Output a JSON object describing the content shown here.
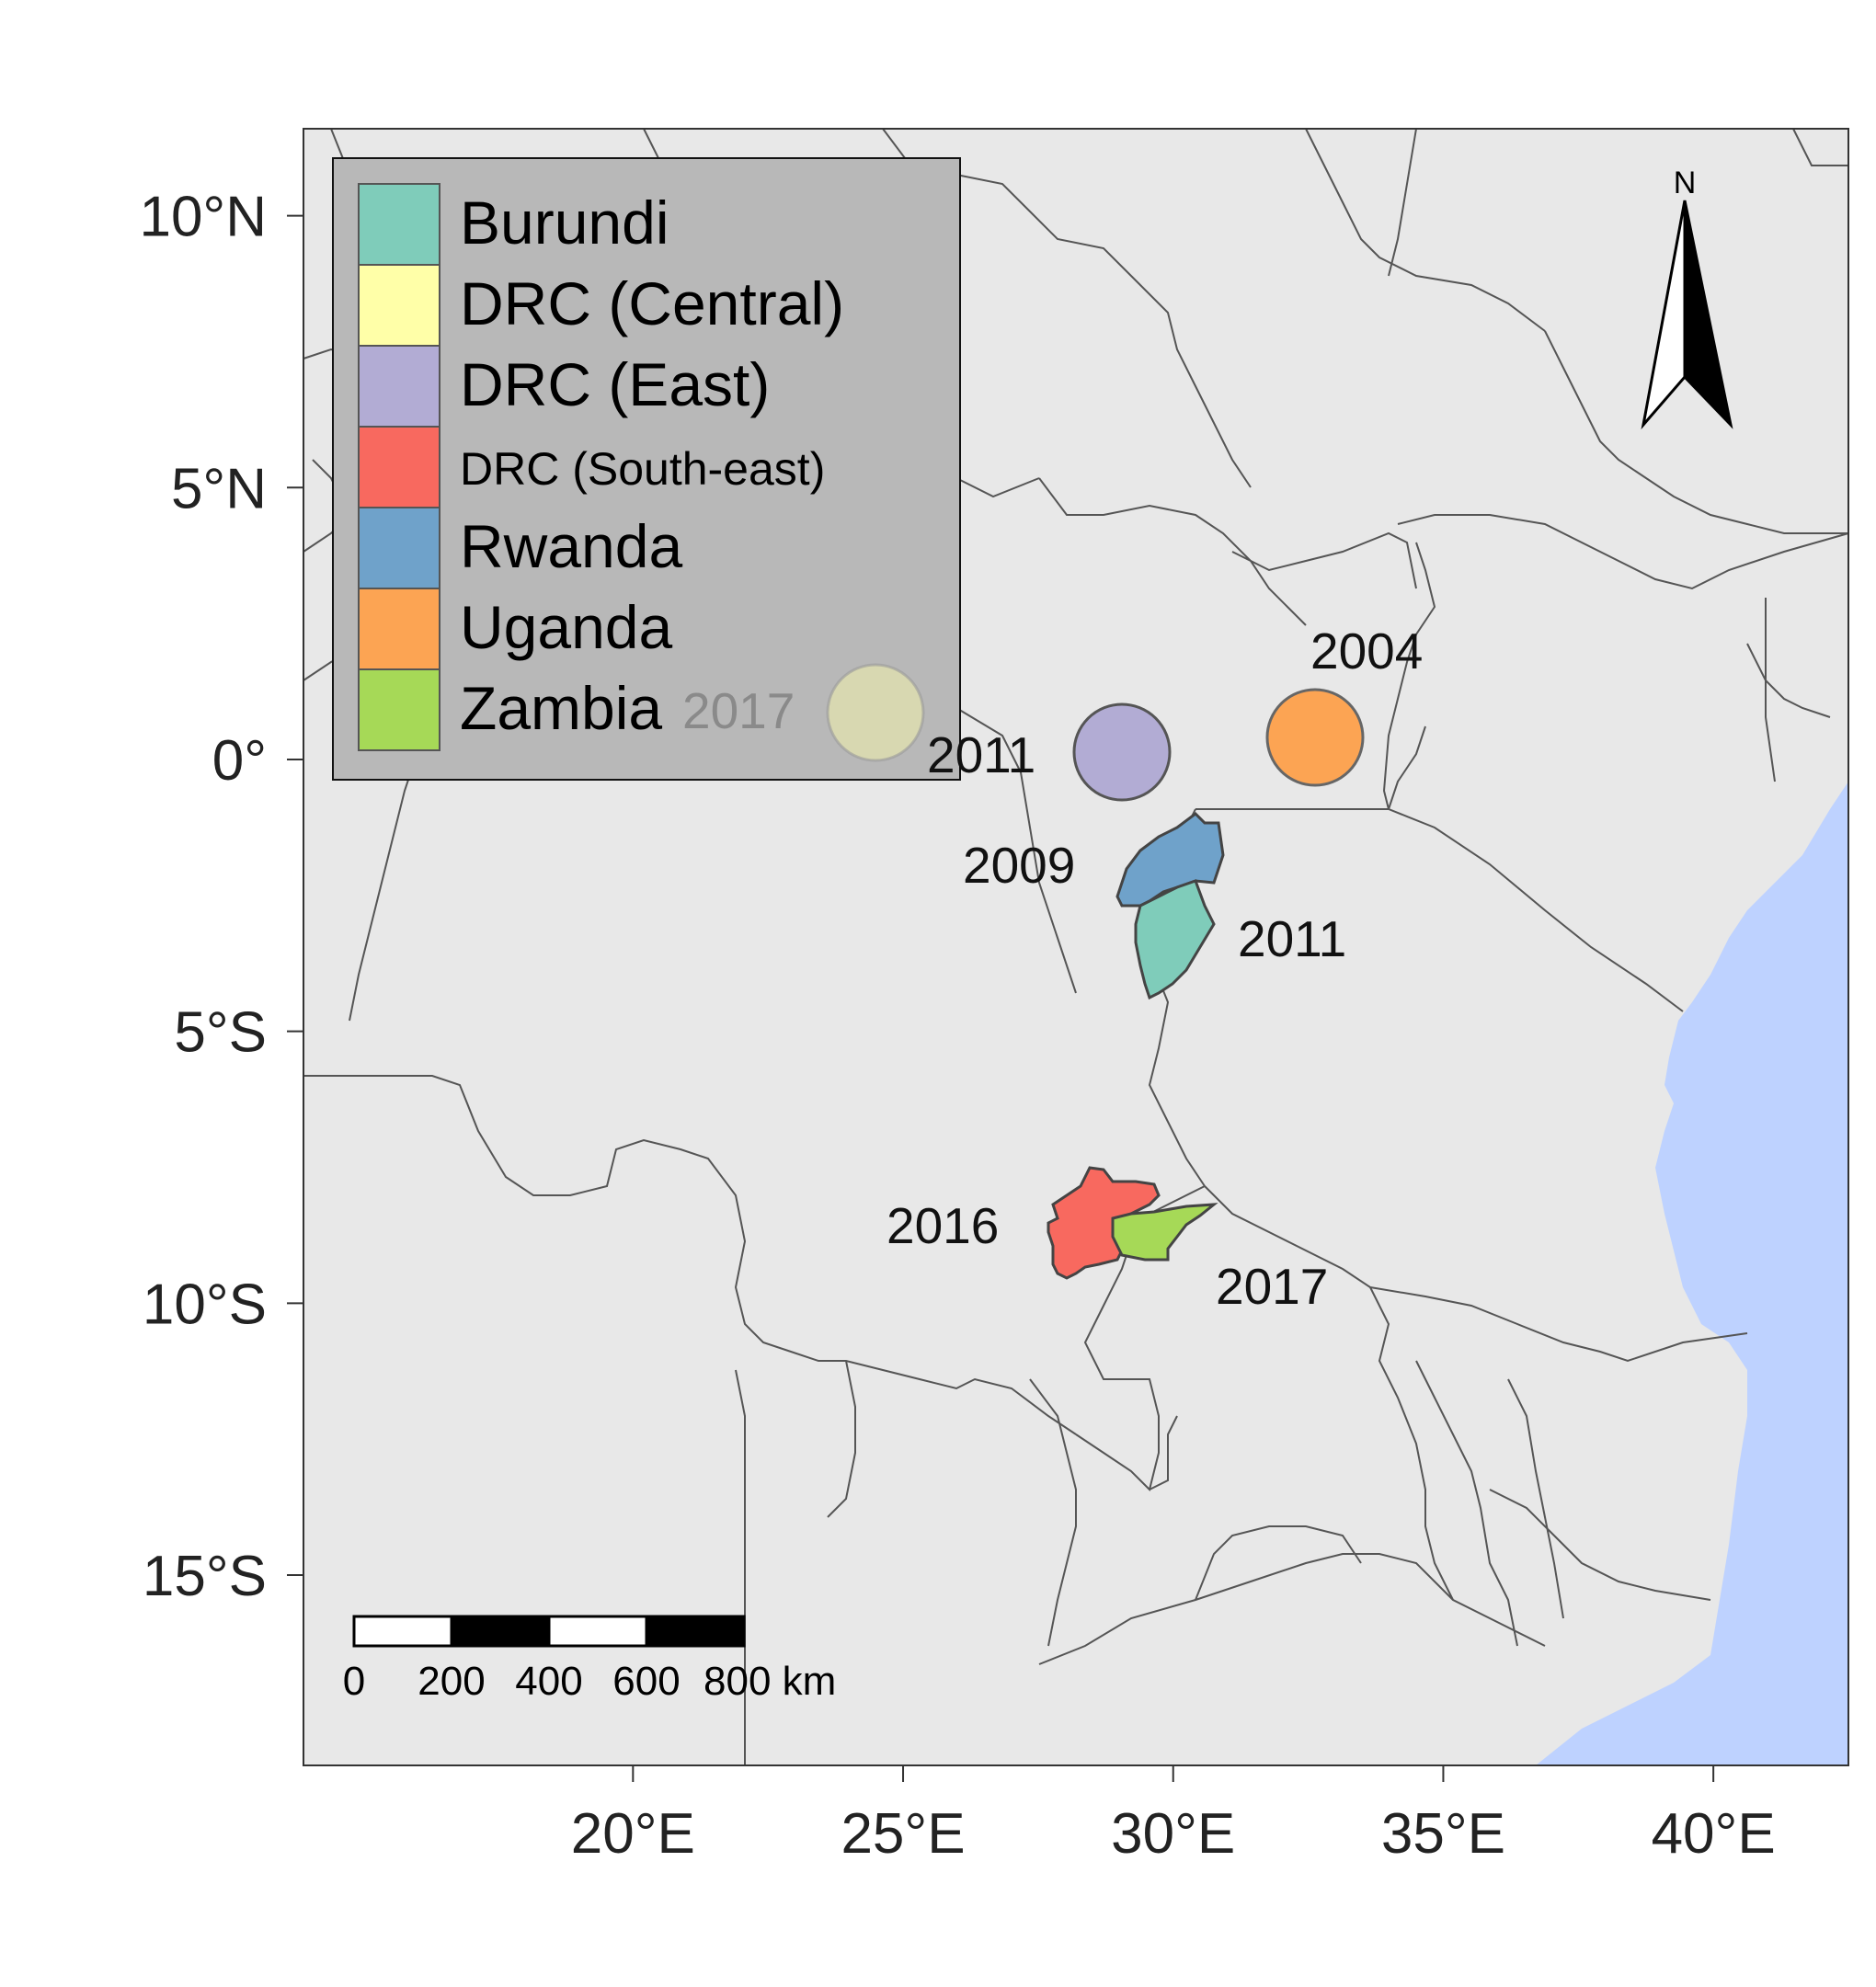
{
  "map": {
    "axes": {
      "y_ticks": [
        {
          "label": "10°N",
          "lat": 10
        },
        {
          "label": "5°N",
          "lat": 5
        },
        {
          "label": "0°",
          "lat": 0
        },
        {
          "label": "5°S",
          "lat": -5
        },
        {
          "label": "10°S",
          "lat": -10
        },
        {
          "label": "15°S",
          "lat": -15
        }
      ],
      "x_ticks": [
        {
          "label": "20°E",
          "lon": 20
        },
        {
          "label": "25°E",
          "lon": 25
        },
        {
          "label": "30°E",
          "lon": 30
        },
        {
          "label": "35°E",
          "lon": 35
        },
        {
          "label": "40°E",
          "lon": 40
        }
      ],
      "lon_range": [
        13.9,
        42.5
      ],
      "lat_range": [
        -18.5,
        11.6
      ]
    },
    "legend": {
      "placement": "top-left",
      "items": [
        {
          "label": "Burundi",
          "color": "#7fccba"
        },
        {
          "label": "DRC (Central)",
          "color": "#ffffa8"
        },
        {
          "label": "DRC (East)",
          "color": "#b2acd4"
        },
        {
          "label": "DRC (South-east)",
          "color": "#f8695f"
        },
        {
          "label": "Rwanda",
          "color": "#6fa2ca"
        },
        {
          "label": "Uganda",
          "color": "#fca453"
        },
        {
          "label": "Zambia",
          "color": "#a6d957"
        }
      ]
    },
    "markers": [
      {
        "region": "DRC (Central)",
        "year": "2017",
        "lon": 24.4,
        "lat": 0.8,
        "shape": "circle"
      },
      {
        "region": "DRC (East)",
        "year": "2011",
        "lon": 29.0,
        "lat": 0.05,
        "shape": "circle"
      },
      {
        "region": "Uganda",
        "year": "2004",
        "lon": 32.6,
        "lat": 0.3,
        "shape": "circle"
      },
      {
        "region": "Rwanda",
        "year": "2009",
        "lon": 29.9,
        "lat": -2.0,
        "shape": "polygon"
      },
      {
        "region": "Burundi",
        "year": "2011",
        "lon": 29.9,
        "lat": -3.5,
        "shape": "polygon"
      },
      {
        "region": "DRC (South-east)",
        "year": "2016",
        "lon": 28.3,
        "lat": -8.9,
        "shape": "polygon"
      },
      {
        "region": "Zambia",
        "year": "2017",
        "lon": 29.8,
        "lat": -8.9,
        "shape": "polygon"
      }
    ],
    "north_arrow": {
      "label": "N"
    },
    "scale_bar": {
      "ticks": [
        "0",
        "200",
        "400",
        "600",
        "800 km"
      ],
      "segment_colors": [
        "#ffffff",
        "#000000",
        "#ffffff",
        "#000000"
      ]
    },
    "colors": {
      "land": "#e8e8e8",
      "ocean": "#bed2ff",
      "border": "#555555",
      "legend_bg": "#b8b8b8"
    }
  }
}
